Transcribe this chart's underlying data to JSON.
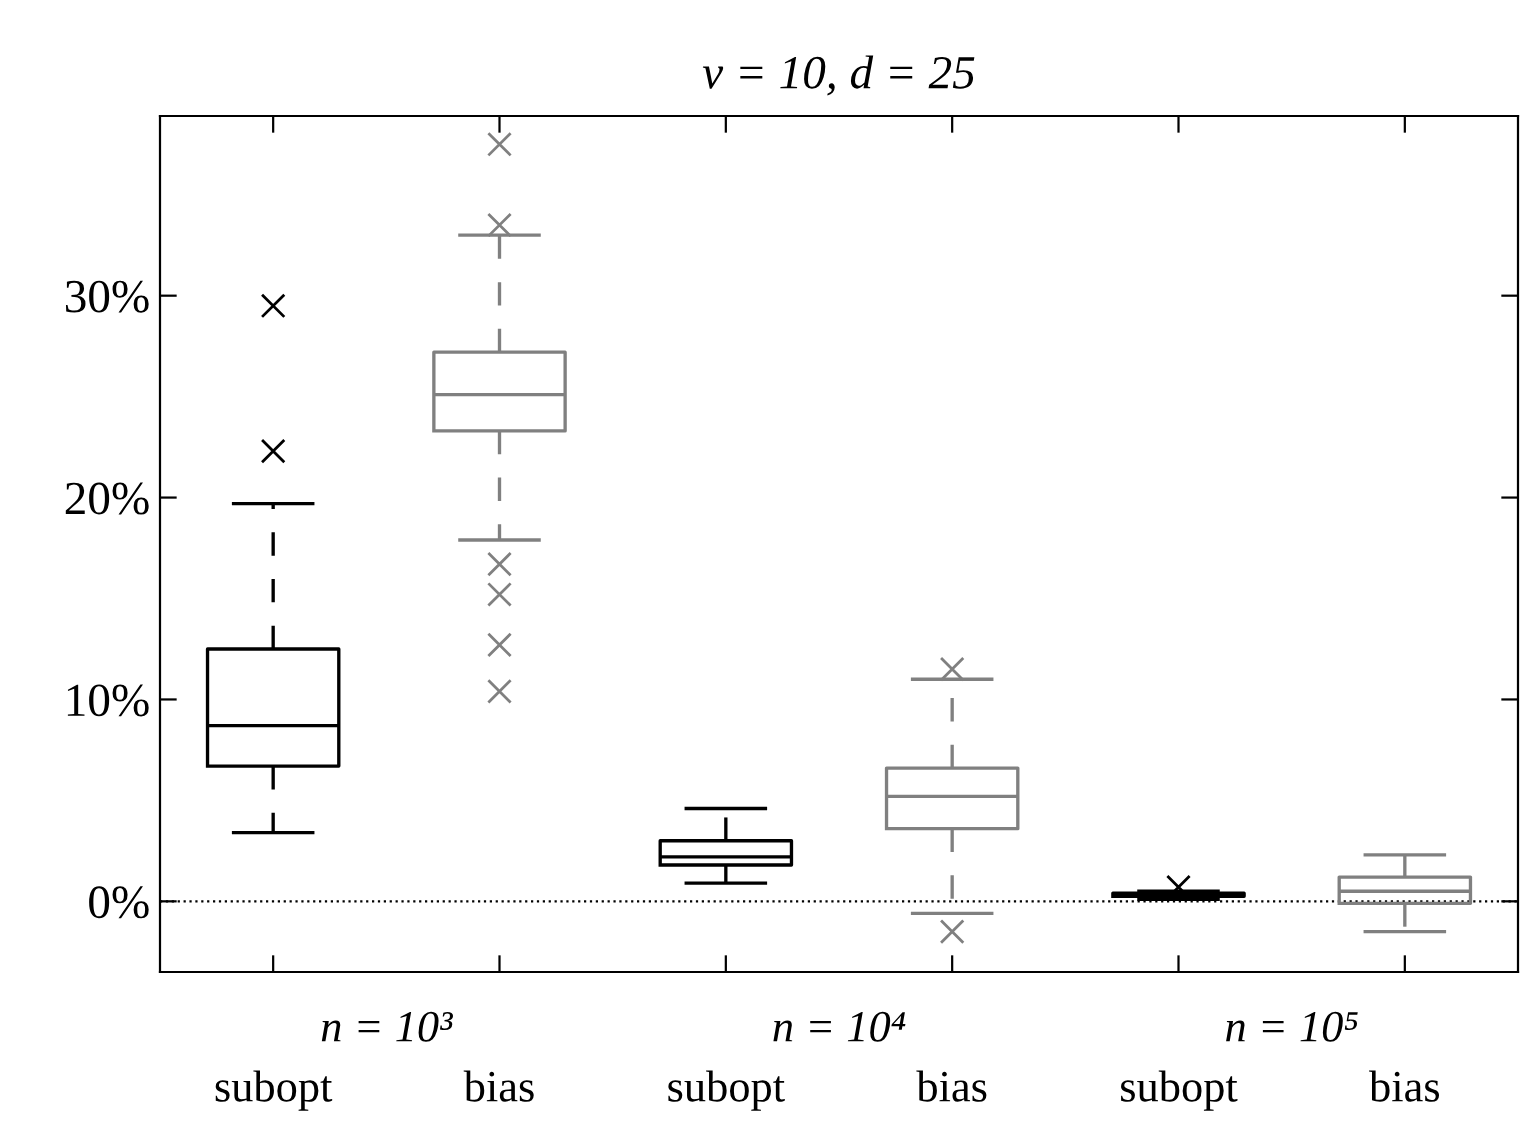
{
  "chart_data": {
    "type": "box",
    "title": "ν = 10, d = 25",
    "categories": [
      "subopt",
      "bias",
      "subopt",
      "bias",
      "subopt",
      "bias"
    ],
    "colors": [
      "#000000",
      "#808080",
      "#000000",
      "#808080",
      "#000000",
      "#808080"
    ],
    "boxes": [
      {
        "low": 3.4,
        "q1": 6.7,
        "median": 8.7,
        "q3": 12.5,
        "high": 19.7,
        "outliers": [
          22.3,
          29.5
        ]
      },
      {
        "low": 17.9,
        "q1": 23.3,
        "median": 25.1,
        "q3": 27.2,
        "high": 33.0,
        "outliers": [
          10.4,
          12.7,
          15.2,
          16.7,
          33.5,
          37.5
        ]
      },
      {
        "low": 0.9,
        "q1": 1.8,
        "median": 2.2,
        "q3": 3.0,
        "high": 4.6
      },
      {
        "low": -0.6,
        "q1": 3.6,
        "median": 5.2,
        "q3": 6.6,
        "high": 11.0,
        "outliers": [
          -1.5,
          11.5
        ]
      },
      {
        "low": 0.1,
        "q1": 0.25,
        "median": 0.3,
        "q3": 0.4,
        "high": 0.5,
        "outliers": [
          0.7
        ]
      },
      {
        "low": -1.5,
        "q1": -0.1,
        "median": 0.5,
        "q3": 1.2,
        "high": 2.3
      }
    ],
    "annotations": [
      "n = 10³",
      "n = 10⁴",
      "n = 10⁵"
    ],
    "ylim": [
      -3.5,
      38.9
    ],
    "yticks": [
      {
        "value": 0,
        "label": "0%"
      },
      {
        "value": 10,
        "label": "10%"
      },
      {
        "value": 20,
        "label": "20%"
      },
      {
        "value": 30,
        "label": "30%"
      }
    ],
    "ref_lines": [
      {
        "axis": "y",
        "value": 0,
        "line_style": "dotted",
        "color": "#000000"
      }
    ],
    "marker": "cross",
    "line_style": "dashed",
    "grid": false,
    "legend": false
  }
}
